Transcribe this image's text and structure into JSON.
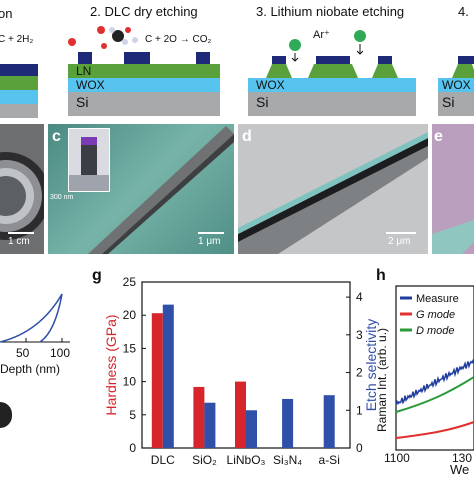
{
  "process": {
    "step1_partial": "on",
    "step1_eq": "C + 2H₂",
    "step2_title": "2. DLC dry etching",
    "step2_eq": "C + 2O → CO₂",
    "step3_title": "3. Lithium niobate etching",
    "step3_ion": "Ar⁺",
    "step4_partial": "4.",
    "layers": {
      "ln": "LN",
      "wox": "WOX",
      "si": "Si"
    }
  },
  "sem": {
    "b_scale": "1 cm",
    "c_letter": "c",
    "c_inset_scale": "300 nm",
    "c_scale": "1 μm",
    "d_letter": "d",
    "d_scale": "2 μm",
    "e_letter": "e"
  },
  "panel_f": {
    "tick_labels": [
      "50",
      "100"
    ],
    "xlabel_partial": "Depth (nm)"
  },
  "colors": {
    "hardness": "#d7262b",
    "selectivity": "#2f4fa8",
    "wox": "#56c4ef",
    "ln": "#5aa13b",
    "si": "#a7a9ab",
    "mask": "#1e2a78",
    "raman_measured": "#1f3c9e",
    "raman_g": "#e03030",
    "raman_d": "#2a9a3a"
  },
  "chart_data": [
    {
      "type": "bar",
      "panel": "g",
      "categories": [
        "DLC",
        "SiO₂",
        "LiNbO₃",
        "Si₃N₄",
        "a-Si"
      ],
      "series": [
        {
          "name": "Hardness (GPa)",
          "axis": "left",
          "values": [
            20.3,
            9.2,
            10.0,
            null,
            null
          ]
        },
        {
          "name": "Etch selectivity",
          "axis": "right",
          "values": [
            3.8,
            1.2,
            1.0,
            1.3,
            1.4
          ]
        }
      ],
      "ylabel_left": "Hardness (GPa)",
      "ylim_left": [
        0,
        25
      ],
      "yticks_left": [
        "0",
        "5",
        "10",
        "15",
        "20",
        "25"
      ],
      "ylabel_right": "Etch selectivity",
      "ylim_right": [
        0,
        4.4
      ],
      "yticks_right": [
        "0",
        "1",
        "2",
        "3",
        "4"
      ]
    },
    {
      "type": "line",
      "panel": "h",
      "ylabel": "Raman Int. (arb. u.)",
      "xlabel_partial": "We",
      "xticks": [
        "1100",
        "130"
      ],
      "legend": [
        "Measure",
        "G mode",
        "D mode"
      ]
    }
  ]
}
